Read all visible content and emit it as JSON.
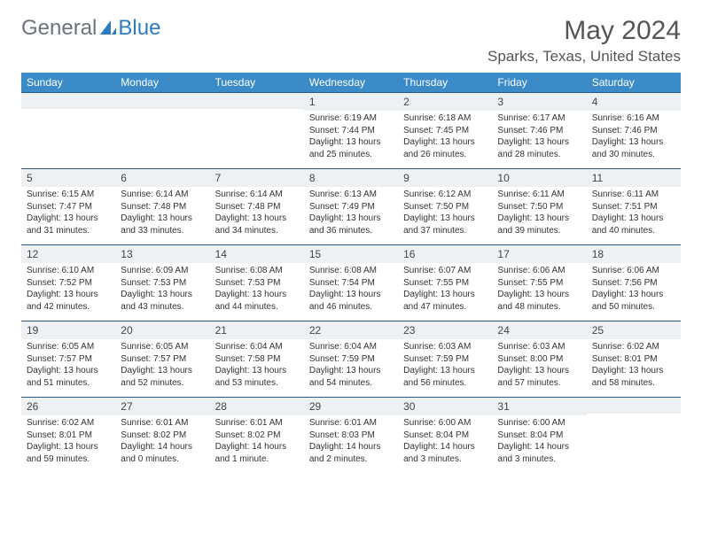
{
  "logo": {
    "text_general": "General",
    "text_blue": "Blue",
    "icon_color": "#2b7cc0"
  },
  "title": "May 2024",
  "location": "Sparks, Texas, United States",
  "colors": {
    "header_bg": "#3b8bc8",
    "header_text": "#ffffff",
    "row_divider": "#2a5a8a",
    "daynum_bg": "#eef1f4",
    "body_text": "#333333"
  },
  "weekdays": [
    "Sunday",
    "Monday",
    "Tuesday",
    "Wednesday",
    "Thursday",
    "Friday",
    "Saturday"
  ],
  "weeks": [
    [
      {
        "n": "",
        "sunrise": "",
        "sunset": "",
        "daylight": ""
      },
      {
        "n": "",
        "sunrise": "",
        "sunset": "",
        "daylight": ""
      },
      {
        "n": "",
        "sunrise": "",
        "sunset": "",
        "daylight": ""
      },
      {
        "n": "1",
        "sunrise": "Sunrise: 6:19 AM",
        "sunset": "Sunset: 7:44 PM",
        "daylight": "Daylight: 13 hours and 25 minutes."
      },
      {
        "n": "2",
        "sunrise": "Sunrise: 6:18 AM",
        "sunset": "Sunset: 7:45 PM",
        "daylight": "Daylight: 13 hours and 26 minutes."
      },
      {
        "n": "3",
        "sunrise": "Sunrise: 6:17 AM",
        "sunset": "Sunset: 7:46 PM",
        "daylight": "Daylight: 13 hours and 28 minutes."
      },
      {
        "n": "4",
        "sunrise": "Sunrise: 6:16 AM",
        "sunset": "Sunset: 7:46 PM",
        "daylight": "Daylight: 13 hours and 30 minutes."
      }
    ],
    [
      {
        "n": "5",
        "sunrise": "Sunrise: 6:15 AM",
        "sunset": "Sunset: 7:47 PM",
        "daylight": "Daylight: 13 hours and 31 minutes."
      },
      {
        "n": "6",
        "sunrise": "Sunrise: 6:14 AM",
        "sunset": "Sunset: 7:48 PM",
        "daylight": "Daylight: 13 hours and 33 minutes."
      },
      {
        "n": "7",
        "sunrise": "Sunrise: 6:14 AM",
        "sunset": "Sunset: 7:48 PM",
        "daylight": "Daylight: 13 hours and 34 minutes."
      },
      {
        "n": "8",
        "sunrise": "Sunrise: 6:13 AM",
        "sunset": "Sunset: 7:49 PM",
        "daylight": "Daylight: 13 hours and 36 minutes."
      },
      {
        "n": "9",
        "sunrise": "Sunrise: 6:12 AM",
        "sunset": "Sunset: 7:50 PM",
        "daylight": "Daylight: 13 hours and 37 minutes."
      },
      {
        "n": "10",
        "sunrise": "Sunrise: 6:11 AM",
        "sunset": "Sunset: 7:50 PM",
        "daylight": "Daylight: 13 hours and 39 minutes."
      },
      {
        "n": "11",
        "sunrise": "Sunrise: 6:11 AM",
        "sunset": "Sunset: 7:51 PM",
        "daylight": "Daylight: 13 hours and 40 minutes."
      }
    ],
    [
      {
        "n": "12",
        "sunrise": "Sunrise: 6:10 AM",
        "sunset": "Sunset: 7:52 PM",
        "daylight": "Daylight: 13 hours and 42 minutes."
      },
      {
        "n": "13",
        "sunrise": "Sunrise: 6:09 AM",
        "sunset": "Sunset: 7:53 PM",
        "daylight": "Daylight: 13 hours and 43 minutes."
      },
      {
        "n": "14",
        "sunrise": "Sunrise: 6:08 AM",
        "sunset": "Sunset: 7:53 PM",
        "daylight": "Daylight: 13 hours and 44 minutes."
      },
      {
        "n": "15",
        "sunrise": "Sunrise: 6:08 AM",
        "sunset": "Sunset: 7:54 PM",
        "daylight": "Daylight: 13 hours and 46 minutes."
      },
      {
        "n": "16",
        "sunrise": "Sunrise: 6:07 AM",
        "sunset": "Sunset: 7:55 PM",
        "daylight": "Daylight: 13 hours and 47 minutes."
      },
      {
        "n": "17",
        "sunrise": "Sunrise: 6:06 AM",
        "sunset": "Sunset: 7:55 PM",
        "daylight": "Daylight: 13 hours and 48 minutes."
      },
      {
        "n": "18",
        "sunrise": "Sunrise: 6:06 AM",
        "sunset": "Sunset: 7:56 PM",
        "daylight": "Daylight: 13 hours and 50 minutes."
      }
    ],
    [
      {
        "n": "19",
        "sunrise": "Sunrise: 6:05 AM",
        "sunset": "Sunset: 7:57 PM",
        "daylight": "Daylight: 13 hours and 51 minutes."
      },
      {
        "n": "20",
        "sunrise": "Sunrise: 6:05 AM",
        "sunset": "Sunset: 7:57 PM",
        "daylight": "Daylight: 13 hours and 52 minutes."
      },
      {
        "n": "21",
        "sunrise": "Sunrise: 6:04 AM",
        "sunset": "Sunset: 7:58 PM",
        "daylight": "Daylight: 13 hours and 53 minutes."
      },
      {
        "n": "22",
        "sunrise": "Sunrise: 6:04 AM",
        "sunset": "Sunset: 7:59 PM",
        "daylight": "Daylight: 13 hours and 54 minutes."
      },
      {
        "n": "23",
        "sunrise": "Sunrise: 6:03 AM",
        "sunset": "Sunset: 7:59 PM",
        "daylight": "Daylight: 13 hours and 56 minutes."
      },
      {
        "n": "24",
        "sunrise": "Sunrise: 6:03 AM",
        "sunset": "Sunset: 8:00 PM",
        "daylight": "Daylight: 13 hours and 57 minutes."
      },
      {
        "n": "25",
        "sunrise": "Sunrise: 6:02 AM",
        "sunset": "Sunset: 8:01 PM",
        "daylight": "Daylight: 13 hours and 58 minutes."
      }
    ],
    [
      {
        "n": "26",
        "sunrise": "Sunrise: 6:02 AM",
        "sunset": "Sunset: 8:01 PM",
        "daylight": "Daylight: 13 hours and 59 minutes."
      },
      {
        "n": "27",
        "sunrise": "Sunrise: 6:01 AM",
        "sunset": "Sunset: 8:02 PM",
        "daylight": "Daylight: 14 hours and 0 minutes."
      },
      {
        "n": "28",
        "sunrise": "Sunrise: 6:01 AM",
        "sunset": "Sunset: 8:02 PM",
        "daylight": "Daylight: 14 hours and 1 minute."
      },
      {
        "n": "29",
        "sunrise": "Sunrise: 6:01 AM",
        "sunset": "Sunset: 8:03 PM",
        "daylight": "Daylight: 14 hours and 2 minutes."
      },
      {
        "n": "30",
        "sunrise": "Sunrise: 6:00 AM",
        "sunset": "Sunset: 8:04 PM",
        "daylight": "Daylight: 14 hours and 3 minutes."
      },
      {
        "n": "31",
        "sunrise": "Sunrise: 6:00 AM",
        "sunset": "Sunset: 8:04 PM",
        "daylight": "Daylight: 14 hours and 3 minutes."
      },
      {
        "n": "",
        "sunrise": "",
        "sunset": "",
        "daylight": ""
      }
    ]
  ]
}
